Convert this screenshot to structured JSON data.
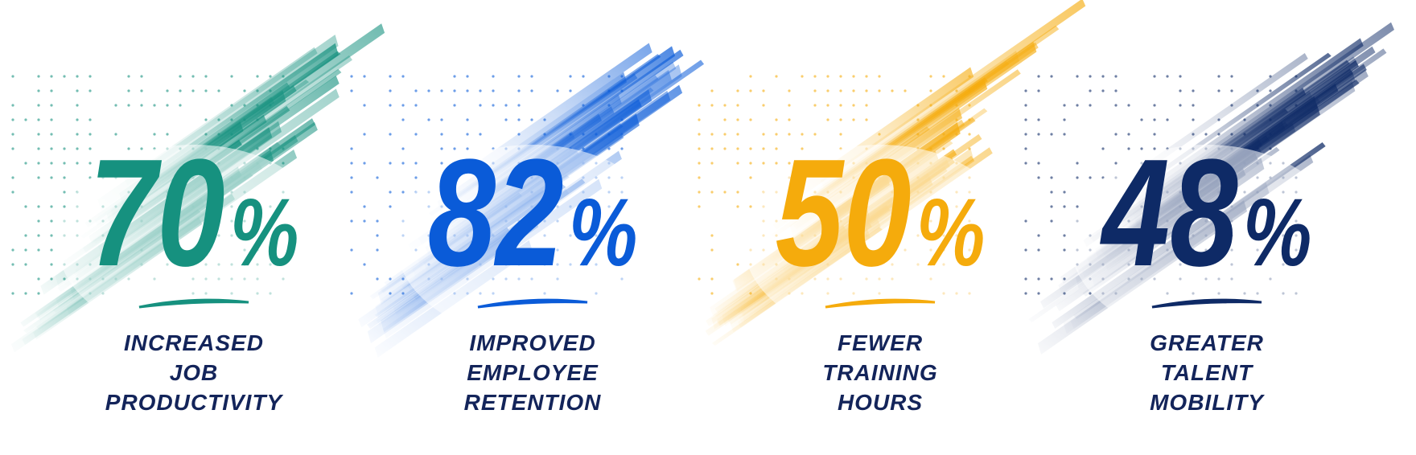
{
  "stats": [
    {
      "value": 70,
      "unit": "%",
      "label": [
        "INCREASED",
        "JOB",
        "PRODUCTIVITY"
      ],
      "color": "#16917f"
    },
    {
      "value": 82,
      "unit": "%",
      "label": [
        "IMPROVED",
        "EMPLOYEE",
        "RETENTION"
      ],
      "color": "#0a5bd8"
    },
    {
      "value": 50,
      "unit": "%",
      "label": [
        "FEWER",
        "TRAINING",
        "HOURS"
      ],
      "color": "#f5ab0c"
    },
    {
      "value": 48,
      "unit": "%",
      "label": [
        "GREATER",
        "TALENT",
        "MOBILITY"
      ],
      "color": "#0e2a66"
    }
  ]
}
